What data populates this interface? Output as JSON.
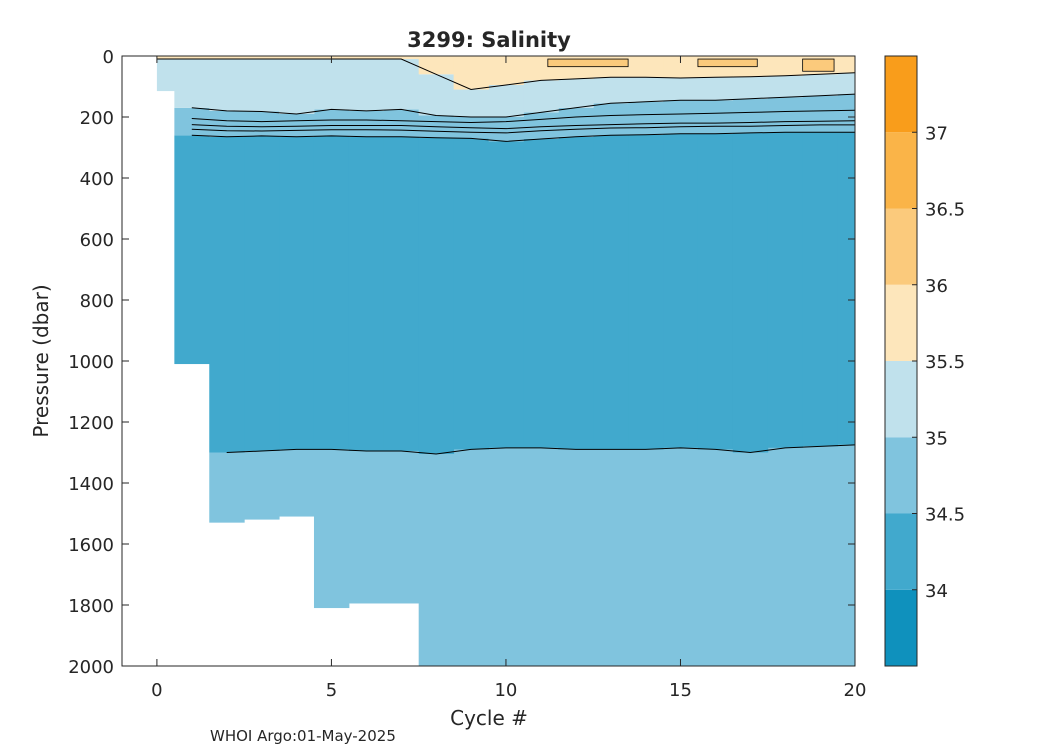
{
  "chart_data": {
    "type": "heatmap",
    "title": "3299:  Salinity",
    "xlabel": "Cycle #",
    "ylabel": "Pressure (dbar)",
    "xlim": [
      -1,
      20
    ],
    "ylim": [
      2000,
      0
    ],
    "y_reversed": true,
    "x_ticks": [
      0,
      5,
      10,
      15,
      20
    ],
    "y_ticks": [
      0,
      200,
      400,
      600,
      800,
      1000,
      1200,
      1400,
      1600,
      1800,
      2000
    ],
    "colorbar": {
      "range": [
        33.5,
        37.5
      ],
      "ticks": [
        34,
        34.5,
        35,
        35.5,
        36,
        36.5,
        37
      ],
      "levels": [
        {
          "from": 33.5,
          "to": 34.0,
          "color": "#0f91bd"
        },
        {
          "from": 34.0,
          "to": 34.5,
          "color": "#41a9cd"
        },
        {
          "from": 34.5,
          "to": 35.0,
          "color": "#80c4de"
        },
        {
          "from": 35.0,
          "to": 35.5,
          "color": "#c0e1ec"
        },
        {
          "from": 35.5,
          "to": 36.0,
          "color": "#fde6bb"
        },
        {
          "from": 36.0,
          "to": 36.5,
          "color": "#fbca7c"
        },
        {
          "from": 36.5,
          "to": 37.0,
          "color": "#fab448"
        },
        {
          "from": 37.0,
          "to": 37.5,
          "color": "#f99d1b"
        }
      ]
    },
    "cycles": [
      0,
      1,
      2,
      3,
      4,
      5,
      6,
      7,
      8,
      9,
      10,
      11,
      12,
      13,
      14,
      15,
      16,
      17,
      18,
      19,
      20
    ],
    "max_pressure": [
      115,
      1010,
      1530,
      1520,
      1510,
      1810,
      1795,
      1795,
      2000,
      2000,
      2000,
      2000,
      2000,
      2000,
      2000,
      2000,
      2000,
      2000,
      2000,
      2000,
      2000
    ],
    "isohaline_depths": {
      "35.5": [
        10,
        10,
        10,
        10,
        10,
        10,
        10,
        10,
        60,
        110,
        95,
        80,
        75,
        70,
        70,
        72,
        70,
        68,
        65,
        60,
        55
      ],
      "35.0": [
        null,
        170,
        180,
        182,
        190,
        175,
        180,
        175,
        195,
        200,
        200,
        185,
        170,
        155,
        150,
        145,
        145,
        140,
        135,
        130,
        125
      ],
      "34.5": [
        null,
        260,
        265,
        262,
        265,
        262,
        265,
        265,
        268,
        270,
        280,
        272,
        265,
        260,
        258,
        255,
        255,
        252,
        250,
        250,
        250
      ],
      "34.0": [
        null,
        null,
        1300,
        1295,
        1290,
        1290,
        1295,
        1295,
        1305,
        1290,
        1285,
        1285,
        1290,
        1290,
        1290,
        1285,
        1290,
        1300,
        1285,
        1280,
        1275
      ]
    },
    "inner_contours_upper": [
      [
        null,
        205,
        212,
        215,
        212,
        210,
        210,
        212,
        215,
        218,
        215,
        208,
        200,
        195,
        192,
        190,
        188,
        185,
        182,
        180,
        178
      ],
      [
        null,
        225,
        230,
        232,
        230,
        228,
        228,
        228,
        232,
        235,
        238,
        232,
        228,
        225,
        222,
        220,
        220,
        218,
        215,
        214,
        212
      ],
      [
        null,
        240,
        245,
        246,
        244,
        242,
        242,
        243,
        247,
        250,
        252,
        245,
        240,
        236,
        235,
        232,
        230,
        230,
        228,
        226,
        226
      ]
    ],
    "salty_patches": [
      {
        "label": "36.0-36.5",
        "x": [
          11.2,
          13.5
        ],
        "p": [
          10,
          35
        ],
        "color_level": 5
      },
      {
        "label": "36.0-36.5",
        "x": [
          15.5,
          17.2
        ],
        "p": [
          10,
          35
        ],
        "color_level": 5
      },
      {
        "label": "36.0-36.5",
        "x": [
          18.5,
          19.4
        ],
        "p": [
          10,
          50
        ],
        "color_level": 5
      }
    ],
    "annotation": "WHOI Argo:01-May-2025"
  }
}
